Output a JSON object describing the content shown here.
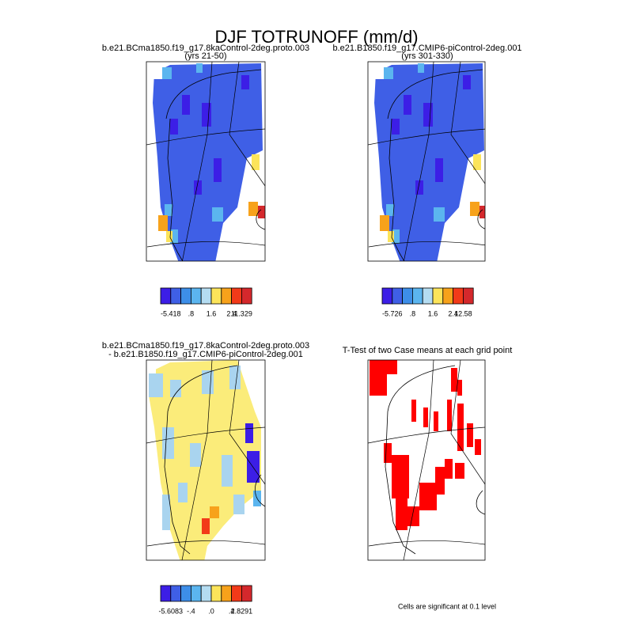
{
  "title": "DJF TOTRUNOFF (mm/d)",
  "colors": [
    "#3c1ee6",
    "#3f5fe6",
    "#3d8ee8",
    "#5bb5ef",
    "#b4dcf1",
    "#fce45a",
    "#f7a21b",
    "#f23a19",
    "#d4282c"
  ],
  "panels": [
    {
      "title": [
        "b.e21.BCma1850.f19_g17.8kaControl-2deg.proto.003",
        "(yrs 21-50)"
      ],
      "colorbar": [
        "-5.418",
        ".8",
        "1.6",
        "2.4",
        "11.329"
      ]
    },
    {
      "title": [
        "b.e21.B1850.f19_g17.CMIP6-piControl-2deg.001",
        "(yrs 301-330)"
      ],
      "colorbar": [
        "-5.726",
        ".8",
        "1.6",
        "2.4",
        "12.58"
      ]
    },
    {
      "title": [
        "b.e21.BCma1850.f19_g17.8kaControl-2deg.proto.003",
        "- b.e21.B1850.f19_g17.CMIP6-piControl-2deg.001"
      ],
      "colorbar": [
        "-5.6083",
        "-.4",
        ".0",
        ".4",
        "2.8291"
      ]
    },
    {
      "title": [
        "T-Test of two Case means at each grid point"
      ]
    }
  ],
  "footnote": "Cells are significant at 0.1 level"
}
